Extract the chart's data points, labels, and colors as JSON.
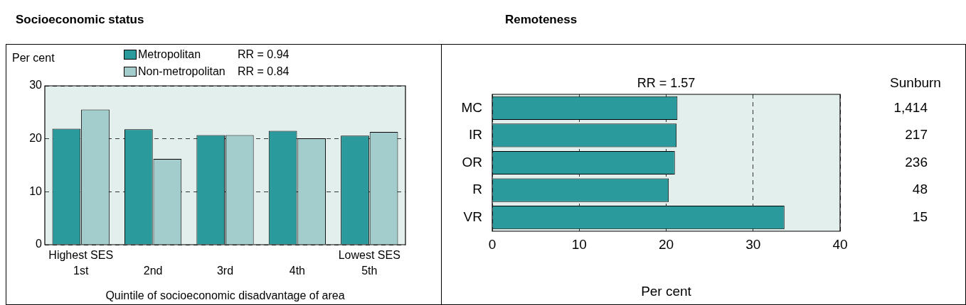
{
  "chart_data": [
    {
      "type": "bar",
      "title": "Socioeconomic status",
      "categories": [
        "1st",
        "2nd",
        "3rd",
        "4th",
        "5th"
      ],
      "series": [
        {
          "name": "Metropolitan",
          "color": "#2a9a9c",
          "values": [
            21.9,
            21.8,
            20.7,
            21.5,
            20.6
          ]
        },
        {
          "name": "Non-metropolitan",
          "color": "#a3cdcd",
          "values": [
            25.5,
            16.2,
            20.7,
            20.1,
            21.3
          ]
        }
      ],
      "ylabel": "Per cent",
      "xlabel": "Quintile of socioeconomic disadvantage of area",
      "ylim": [
        0,
        30
      ],
      "yticks": [
        0,
        10,
        20,
        30
      ],
      "grid": "y",
      "legend": "top",
      "annotations": [
        "RR = 0.94",
        "RR = 0.84",
        "Highest SES",
        "Lowest SES"
      ]
    },
    {
      "type": "bar",
      "orientation": "horizontal",
      "title": "Remoteness",
      "categories": [
        "MC",
        "IR",
        "OR",
        "R",
        "VR"
      ],
      "values": [
        21.3,
        21.2,
        21.0,
        20.3,
        33.6
      ],
      "color": "#2a9a9c",
      "xlabel": "Per cent",
      "xlim": [
        0,
        40
      ],
      "xticks": [
        0,
        10,
        20,
        30,
        40
      ],
      "grid": "x",
      "annotations": [
        "RR = 1.57",
        "Sunburn",
        "1,414",
        "217",
        "236",
        "48",
        "15"
      ]
    }
  ]
}
